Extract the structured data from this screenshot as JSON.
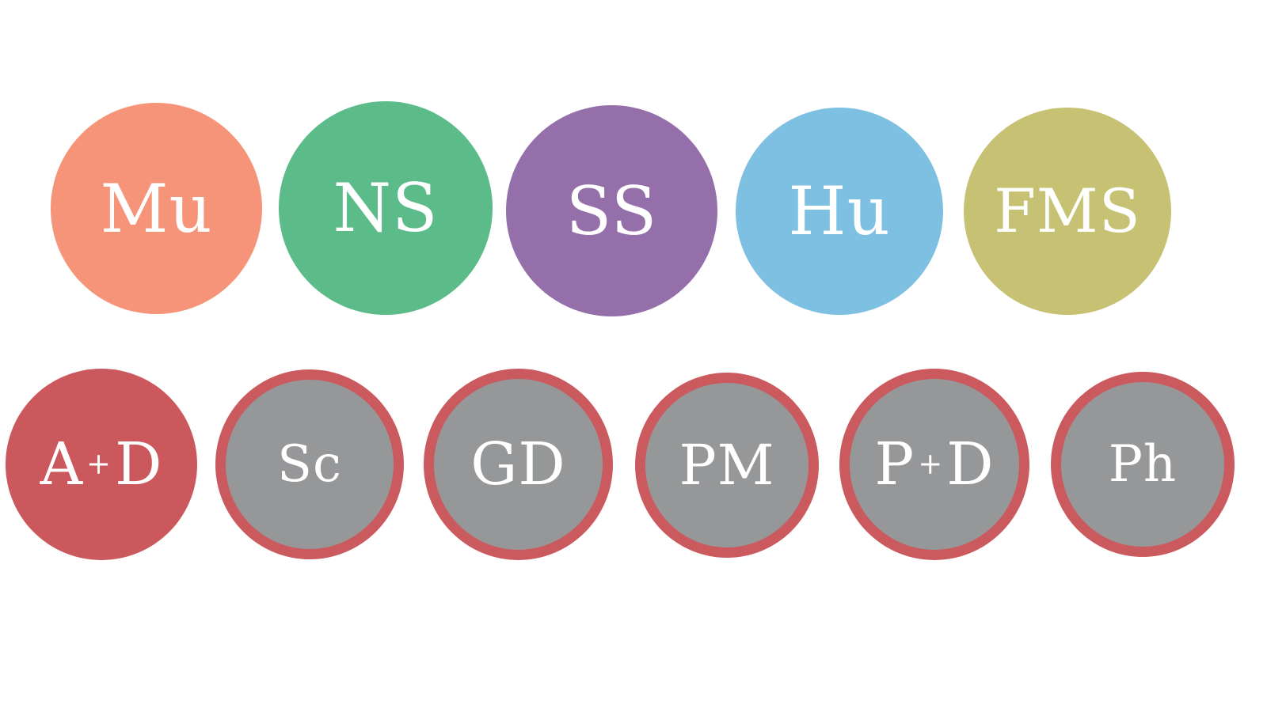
{
  "row1": [
    {
      "label": "Mu",
      "color": "#f59478"
    },
    {
      "label": "NS",
      "color": "#5bbb89"
    },
    {
      "label": "SS",
      "color": "#946faa"
    },
    {
      "label": "Hu",
      "color": "#7dc0e2"
    },
    {
      "label": "FMS",
      "color": "#c6c173"
    }
  ],
  "row2": [
    {
      "left": "A",
      "sep": "+",
      "right": "D",
      "color": "#cb585d"
    },
    {
      "label": "Sc",
      "color": "#969799",
      "ring": "#cb5a5e"
    },
    {
      "label": "GD",
      "color": "#969799",
      "ring": "#cb5a5e"
    },
    {
      "label": "PM",
      "color": "#969799",
      "ring": "#cb5a5e"
    },
    {
      "left": "P",
      "sep": "+",
      "right": "D",
      "color": "#969799",
      "ring": "#cb5a5e"
    },
    {
      "label": "Ph",
      "color": "#969799",
      "ring": "#cb5a5e"
    }
  ]
}
